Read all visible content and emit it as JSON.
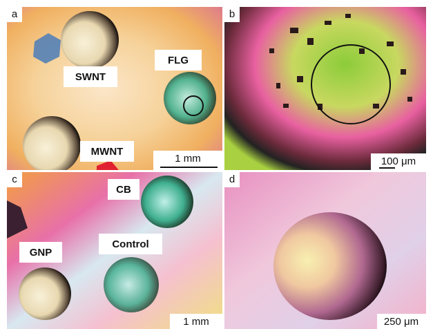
{
  "panels": [
    {
      "label": "a",
      "annotations": [
        "SWNT",
        "FLG",
        "MWNT"
      ],
      "scale_bar": "1 mm"
    },
    {
      "label": "b",
      "annotations": [],
      "scale_bar": "100 μm"
    },
    {
      "label": "c",
      "annotations": [
        "CB",
        "GNP",
        "Control"
      ],
      "scale_bar": "1 mm"
    },
    {
      "label": "d",
      "annotations": [],
      "scale_bar": "250 μm"
    }
  ]
}
